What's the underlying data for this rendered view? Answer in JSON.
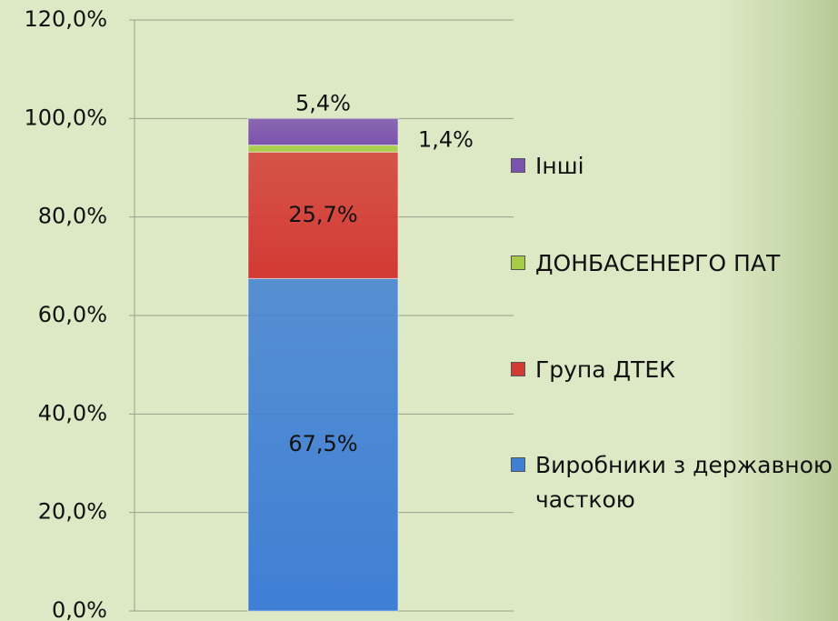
{
  "chart_data": {
    "type": "stacked_bar",
    "categories": [
      null
    ],
    "series": [
      {
        "name": "Виробники з державною часткою",
        "color": "#3f7fd4",
        "values": [
          67.5
        ],
        "value_labels": [
          "67,5%"
        ]
      },
      {
        "name": "Група ДТЕК",
        "color": "#d33a34",
        "values": [
          25.7
        ],
        "value_labels": [
          "25,7%"
        ]
      },
      {
        "name": "ДОНБАСЕНЕРГО ПАТ",
        "color": "#a6cc45",
        "values": [
          1.4
        ],
        "value_labels": [
          "1,4%"
        ]
      },
      {
        "name": "Інші",
        "color": "#7b52ad",
        "values": [
          5.4
        ],
        "value_labels": [
          "5,4%"
        ]
      }
    ],
    "ylim": [
      0,
      120
    ],
    "yticks": [
      {
        "value": 0,
        "label": "0,0%"
      },
      {
        "value": 20,
        "label": "20,0%"
      },
      {
        "value": 40,
        "label": "40,0%"
      },
      {
        "value": 60,
        "label": "60,0%"
      },
      {
        "value": 80,
        "label": "80,0%"
      },
      {
        "value": 100,
        "label": "100,0%"
      },
      {
        "value": 120,
        "label": "120,0%"
      }
    ],
    "grid": true,
    "legend": "right"
  }
}
